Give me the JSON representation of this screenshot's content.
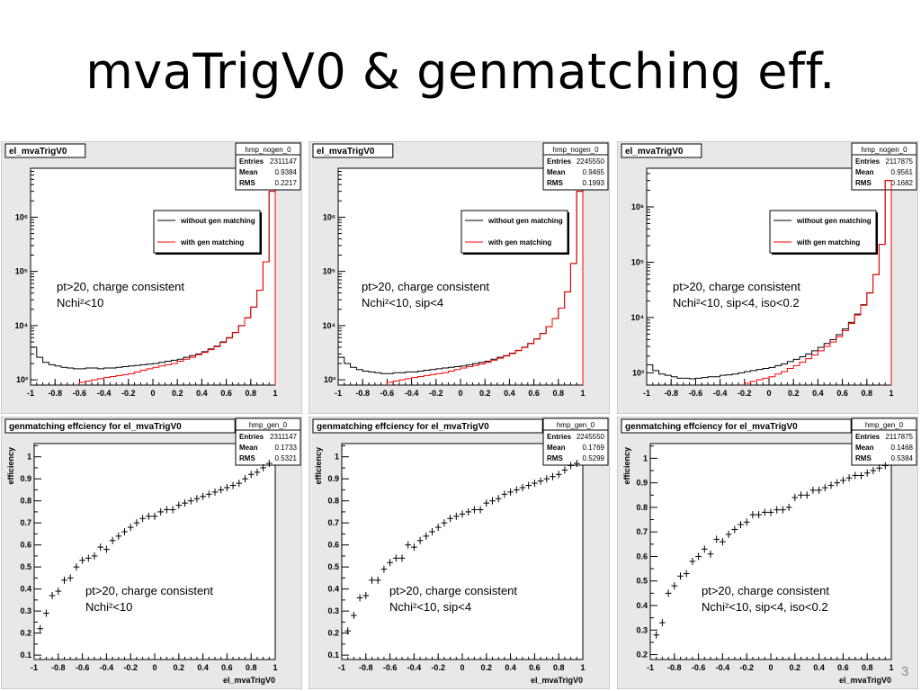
{
  "slide": {
    "title": "mvaTrigV0 & genmatching eff.",
    "number": "3"
  },
  "colors": {
    "without": "#000000",
    "with": "#ff0000",
    "eff": "#000000",
    "panel_bg": "#e8e8e8",
    "frame_bg": "#ffffff"
  },
  "chart_data": [
    {
      "type": "line",
      "title": "el_mvaTrigV0",
      "stats": {
        "name": "hmp_nogen_0",
        "rows": [
          [
            "Entries",
            "2311147"
          ],
          [
            "Mean",
            "0.9384"
          ],
          [
            "RMS",
            "0.2217"
          ]
        ]
      },
      "legend": [
        "without gen matching",
        "with gen matching"
      ],
      "annotation": [
        "pt>20, charge consistent",
        "Nchi²<10"
      ],
      "xlabel": "",
      "ylabel": "",
      "x_ticks": [
        "-1",
        "-0.8",
        "-0.6",
        "-0.4",
        "-0.2",
        "0",
        "0.2",
        "0.4",
        "0.6",
        "0.8",
        "1"
      ],
      "y_ticks": [
        "10³",
        "10⁴",
        "10⁵",
        "10⁶"
      ],
      "y_scale": "log",
      "ylim": [
        800,
        8000000
      ],
      "xlim": [
        -1,
        1
      ],
      "x": [
        -1.0,
        -0.95,
        -0.9,
        -0.85,
        -0.8,
        -0.75,
        -0.7,
        -0.65,
        -0.6,
        -0.55,
        -0.5,
        -0.45,
        -0.4,
        -0.35,
        -0.3,
        -0.25,
        -0.2,
        -0.15,
        -0.1,
        -0.05,
        0.0,
        0.05,
        0.1,
        0.15,
        0.2,
        0.25,
        0.3,
        0.35,
        0.4,
        0.45,
        0.5,
        0.55,
        0.6,
        0.65,
        0.7,
        0.75,
        0.8,
        0.85,
        0.9,
        0.95
      ],
      "series": [
        {
          "name": "without gen matching",
          "values": [
            4000,
            2600,
            2100,
            1900,
            1800,
            1700,
            1650,
            1600,
            1600,
            1650,
            1650,
            1600,
            1650,
            1650,
            1700,
            1750,
            1800,
            1850,
            1900,
            1950,
            2000,
            2100,
            2200,
            2300,
            2400,
            2600,
            2800,
            3000,
            3300,
            3700,
            4200,
            5000,
            6000,
            7500,
            10000,
            14000,
            22000,
            45000,
            150000,
            3000000
          ]
        },
        {
          "name": "with gen matching",
          "values": [
            null,
            null,
            null,
            null,
            null,
            null,
            null,
            null,
            900,
            950,
            1000,
            1050,
            1100,
            1150,
            1200,
            1250,
            1300,
            1400,
            1500,
            1600,
            1700,
            1800,
            1900,
            2000,
            2200,
            2400,
            2600,
            2900,
            3200,
            3600,
            4100,
            4900,
            5900,
            7400,
            9900,
            13900,
            21900,
            44900,
            150000,
            3000000
          ]
        }
      ]
    },
    {
      "type": "line",
      "title": "el_mvaTrigV0",
      "stats": {
        "name": "hmp_nogen_0",
        "rows": [
          [
            "Entries",
            "2245550"
          ],
          [
            "Mean",
            "0.9465"
          ],
          [
            "RMS",
            "0.1993"
          ]
        ]
      },
      "legend": [
        "without gen matching",
        "with gen matching"
      ],
      "annotation": [
        "pt>20, charge consistent",
        "Nchi²<10, sip<4"
      ],
      "xlabel": "",
      "ylabel": "",
      "x_ticks": [
        "-1",
        "-0.8",
        "-0.6",
        "-0.4",
        "-0.2",
        "0",
        "0.2",
        "0.4",
        "0.6",
        "0.8",
        "1"
      ],
      "y_ticks": [
        "10³",
        "10⁴",
        "10⁵",
        "10⁶"
      ],
      "y_scale": "log",
      "ylim": [
        800,
        8000000
      ],
      "xlim": [
        -1,
        1
      ],
      "x": [
        -1.0,
        -0.95,
        -0.9,
        -0.85,
        -0.8,
        -0.75,
        -0.7,
        -0.65,
        -0.6,
        -0.55,
        -0.5,
        -0.45,
        -0.4,
        -0.35,
        -0.3,
        -0.25,
        -0.2,
        -0.15,
        -0.1,
        -0.05,
        0.0,
        0.05,
        0.1,
        0.15,
        0.2,
        0.25,
        0.3,
        0.35,
        0.4,
        0.45,
        0.5,
        0.55,
        0.6,
        0.65,
        0.7,
        0.75,
        0.8,
        0.85,
        0.9,
        0.95
      ],
      "series": [
        {
          "name": "without gen matching",
          "values": [
            2600,
            2000,
            1700,
            1550,
            1450,
            1400,
            1350,
            1300,
            1300,
            1350,
            1350,
            1400,
            1400,
            1450,
            1500,
            1550,
            1600,
            1650,
            1700,
            1750,
            1800,
            1900,
            2000,
            2100,
            2200,
            2400,
            2600,
            2800,
            3100,
            3500,
            4000,
            4700,
            5700,
            7200,
            9600,
            13500,
            21000,
            42000,
            140000,
            3000000
          ]
        },
        {
          "name": "with gen matching",
          "values": [
            null,
            null,
            null,
            null,
            null,
            null,
            null,
            null,
            900,
            950,
            1000,
            1050,
            1100,
            1150,
            1200,
            1250,
            1300,
            1350,
            1450,
            1550,
            1650,
            1750,
            1850,
            1950,
            2100,
            2300,
            2500,
            2750,
            3050,
            3450,
            3950,
            4650,
            5650,
            7150,
            9550,
            13450,
            20950,
            41950,
            140000,
            3000000
          ]
        }
      ]
    },
    {
      "type": "line",
      "title": "el_mvaTrigV0",
      "stats": {
        "name": "hmp_nogen_0",
        "rows": [
          [
            "Entries",
            "2117875"
          ],
          [
            "Mean",
            "0.9561"
          ],
          [
            "RMS",
            "0.1682"
          ]
        ]
      },
      "legend": [
        "without gen matching",
        "with gen matching"
      ],
      "annotation": [
        "pt>20, charge consistent",
        "Nchi²<10, sip<4, iso<0.2"
      ],
      "xlabel": "",
      "ylabel": "",
      "x_ticks": [
        "-1",
        "-0.8",
        "-0.6",
        "-0.4",
        "-0.2",
        "0",
        "0.2",
        "0.4",
        "0.6",
        "0.8",
        "1"
      ],
      "y_ticks": [
        "10³",
        "10⁴",
        "10⁵",
        "10⁶"
      ],
      "y_scale": "log",
      "ylim": [
        600,
        5000000
      ],
      "xlim": [
        -1,
        1
      ],
      "x": [
        -1.0,
        -0.95,
        -0.9,
        -0.85,
        -0.8,
        -0.75,
        -0.7,
        -0.65,
        -0.6,
        -0.55,
        -0.5,
        -0.45,
        -0.4,
        -0.35,
        -0.3,
        -0.25,
        -0.2,
        -0.15,
        -0.1,
        -0.05,
        0.0,
        0.05,
        0.1,
        0.15,
        0.2,
        0.25,
        0.3,
        0.35,
        0.4,
        0.45,
        0.5,
        0.55,
        0.6,
        0.65,
        0.7,
        0.75,
        0.8,
        0.85,
        0.9,
        0.95
      ],
      "series": [
        {
          "name": "without gen matching",
          "values": [
            1400,
            1100,
            950,
            900,
            850,
            800,
            800,
            780,
            800,
            820,
            850,
            850,
            900,
            920,
            950,
            1000,
            1050,
            1100,
            1150,
            1200,
            1250,
            1350,
            1450,
            1600,
            1750,
            1950,
            2200,
            2500,
            2900,
            3400,
            4000,
            4900,
            6200,
            8200,
            11500,
            17000,
            28000,
            60000,
            210000,
            3000000
          ]
        },
        {
          "name": "with gen matching",
          "values": [
            null,
            null,
            null,
            null,
            null,
            null,
            null,
            null,
            null,
            null,
            null,
            null,
            null,
            null,
            null,
            null,
            650,
            700,
            750,
            800,
            850,
            950,
            1050,
            1200,
            1350,
            1550,
            1800,
            2100,
            2500,
            3000,
            3600,
            4500,
            5800,
            7800,
            11100,
            16600,
            27600,
            59600,
            210000,
            3000000
          ]
        }
      ]
    },
    {
      "type": "scatter",
      "title": "genmatching effciency for el_mvaTrigV0",
      "stats": {
        "name": "hmp_gen_0",
        "rows": [
          [
            "Entries",
            "2311147"
          ],
          [
            "Mean",
            "0.1733"
          ],
          [
            "RMS",
            "0.5321"
          ]
        ]
      },
      "annotation": [
        "pt>20, charge consistent",
        "Nchi²<10"
      ],
      "xlabel": "el_mvaTrigV0",
      "ylabel": "efficiency",
      "x_ticks": [
        "-1",
        "-0.8",
        "-0.6",
        "-0.4",
        "-0.2",
        "0",
        "0.2",
        "0.4",
        "0.6",
        "0.8",
        "1"
      ],
      "y_ticks": [
        "0.1",
        "0.2",
        "0.3",
        "0.4",
        "0.5",
        "0.6",
        "0.7",
        "0.8",
        "0.9",
        "1"
      ],
      "xlim": [
        -1,
        1
      ],
      "ylim": [
        0.08,
        1.06
      ],
      "x": [
        -0.95,
        -0.9,
        -0.85,
        -0.8,
        -0.75,
        -0.7,
        -0.65,
        -0.6,
        -0.55,
        -0.5,
        -0.45,
        -0.4,
        -0.35,
        -0.3,
        -0.25,
        -0.2,
        -0.15,
        -0.1,
        -0.05,
        0.0,
        0.05,
        0.1,
        0.15,
        0.2,
        0.25,
        0.3,
        0.35,
        0.4,
        0.45,
        0.5,
        0.55,
        0.6,
        0.65,
        0.7,
        0.75,
        0.8,
        0.85,
        0.9,
        0.95
      ],
      "values": [
        0.22,
        0.29,
        0.37,
        0.39,
        0.44,
        0.45,
        0.5,
        0.53,
        0.54,
        0.55,
        0.59,
        0.58,
        0.62,
        0.64,
        0.66,
        0.68,
        0.7,
        0.72,
        0.73,
        0.73,
        0.75,
        0.76,
        0.76,
        0.78,
        0.79,
        0.8,
        0.81,
        0.82,
        0.83,
        0.84,
        0.85,
        0.86,
        0.87,
        0.88,
        0.9,
        0.92,
        0.93,
        0.95,
        0.97
      ]
    },
    {
      "type": "scatter",
      "title": "genmatching effciency for el_mvaTrigV0",
      "stats": {
        "name": "hmp_gen_0",
        "rows": [
          [
            "Entries",
            "2245550"
          ],
          [
            "Mean",
            "0.1769"
          ],
          [
            "RMS",
            "0.5299"
          ]
        ]
      },
      "annotation": [
        "pt>20, charge consistent",
        "Nchi²<10, sip<4"
      ],
      "xlabel": "el_mvaTrigV0",
      "ylabel": "efficiency",
      "x_ticks": [
        "-1",
        "-0.8",
        "-0.6",
        "-0.4",
        "-0.2",
        "0",
        "0.2",
        "0.4",
        "0.6",
        "0.8",
        "1"
      ],
      "y_ticks": [
        "0.1",
        "0.2",
        "0.3",
        "0.4",
        "0.5",
        "0.6",
        "0.7",
        "0.8",
        "0.9",
        "1"
      ],
      "xlim": [
        -1,
        1
      ],
      "ylim": [
        0.08,
        1.06
      ],
      "x": [
        -0.95,
        -0.9,
        -0.85,
        -0.8,
        -0.75,
        -0.7,
        -0.65,
        -0.6,
        -0.55,
        -0.5,
        -0.45,
        -0.4,
        -0.35,
        -0.3,
        -0.25,
        -0.2,
        -0.15,
        -0.1,
        -0.05,
        0.0,
        0.05,
        0.1,
        0.15,
        0.2,
        0.25,
        0.3,
        0.35,
        0.4,
        0.45,
        0.5,
        0.55,
        0.6,
        0.65,
        0.7,
        0.75,
        0.8,
        0.85,
        0.9,
        0.95
      ],
      "values": [
        0.21,
        0.28,
        0.36,
        0.37,
        0.44,
        0.44,
        0.49,
        0.52,
        0.54,
        0.54,
        0.6,
        0.59,
        0.62,
        0.64,
        0.66,
        0.68,
        0.7,
        0.72,
        0.73,
        0.74,
        0.75,
        0.76,
        0.76,
        0.79,
        0.8,
        0.81,
        0.83,
        0.84,
        0.85,
        0.86,
        0.87,
        0.88,
        0.89,
        0.9,
        0.91,
        0.92,
        0.94,
        0.96,
        0.97
      ]
    },
    {
      "type": "scatter",
      "title": "genmatching effciency for el_mvaTrigV0",
      "stats": {
        "name": "hmp_gen_0",
        "rows": [
          [
            "Entries",
            "2117875"
          ],
          [
            "Mean",
            "0.1468"
          ],
          [
            "RMS",
            "0.5384"
          ]
        ]
      },
      "annotation": [
        "pt>20, charge consistent",
        "Nchi²<10, sip<4, iso<0.2"
      ],
      "xlabel": "el_mvaTrigV0",
      "ylabel": "efficiency",
      "x_ticks": [
        "-1",
        "-0.8",
        "-0.6",
        "-0.4",
        "-0.2",
        "0",
        "0.2",
        "0.4",
        "0.6",
        "0.8",
        "1"
      ],
      "y_ticks": [
        "0.2",
        "0.3",
        "0.4",
        "0.5",
        "0.6",
        "0.7",
        "0.8",
        "0.9",
        "1"
      ],
      "xlim": [
        -1,
        1
      ],
      "ylim": [
        0.18,
        1.06
      ],
      "x": [
        -0.95,
        -0.9,
        -0.85,
        -0.8,
        -0.75,
        -0.7,
        -0.65,
        -0.6,
        -0.55,
        -0.5,
        -0.45,
        -0.4,
        -0.35,
        -0.3,
        -0.25,
        -0.2,
        -0.15,
        -0.1,
        -0.05,
        0.0,
        0.05,
        0.1,
        0.15,
        0.2,
        0.25,
        0.3,
        0.35,
        0.4,
        0.45,
        0.5,
        0.55,
        0.6,
        0.65,
        0.7,
        0.75,
        0.8,
        0.85,
        0.9,
        0.95
      ],
      "values": [
        0.28,
        0.33,
        0.45,
        0.48,
        0.52,
        0.53,
        0.58,
        0.6,
        0.63,
        0.61,
        0.67,
        0.66,
        0.69,
        0.71,
        0.73,
        0.74,
        0.77,
        0.77,
        0.78,
        0.78,
        0.79,
        0.79,
        0.8,
        0.84,
        0.85,
        0.85,
        0.87,
        0.87,
        0.88,
        0.89,
        0.9,
        0.91,
        0.92,
        0.93,
        0.93,
        0.94,
        0.95,
        0.96,
        0.97
      ]
    }
  ]
}
